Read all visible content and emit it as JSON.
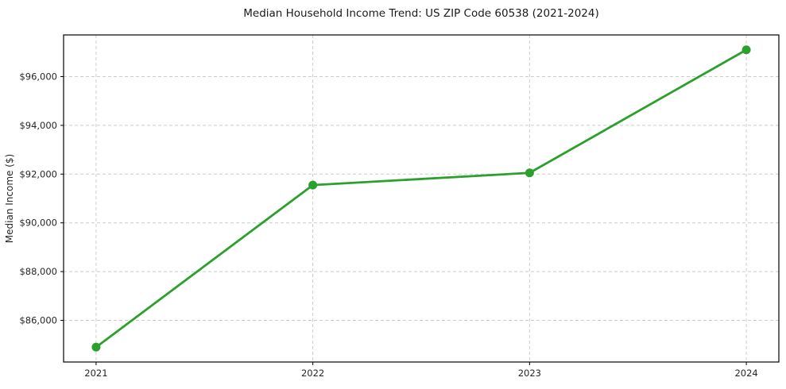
{
  "chart_data": {
    "type": "line",
    "title": "Median Household Income Trend: US ZIP Code 60538 (2021-2024)",
    "xlabel": "",
    "ylabel": "Median Income ($)",
    "x": [
      2021,
      2022,
      2023,
      2024
    ],
    "x_tick_labels": [
      "2021",
      "2022",
      "2023",
      "2024"
    ],
    "values": [
      84900,
      91550,
      92050,
      97100
    ],
    "y_ticks": [
      86000,
      88000,
      90000,
      92000,
      94000,
      96000
    ],
    "y_tick_labels": [
      "$86,000",
      "$88,000",
      "$90,000",
      "$92,000",
      "$94,000",
      "$96,000"
    ],
    "xlim": [
      2020.85,
      2024.15
    ],
    "ylim": [
      84290,
      97710
    ],
    "grid": true,
    "grid_style": "dashed",
    "legend": false,
    "line_color": "#2ca02c",
    "marker": "circle",
    "grid_color": "#cccccc",
    "spine_color": "#000000",
    "background_color": "#ffffff"
  }
}
